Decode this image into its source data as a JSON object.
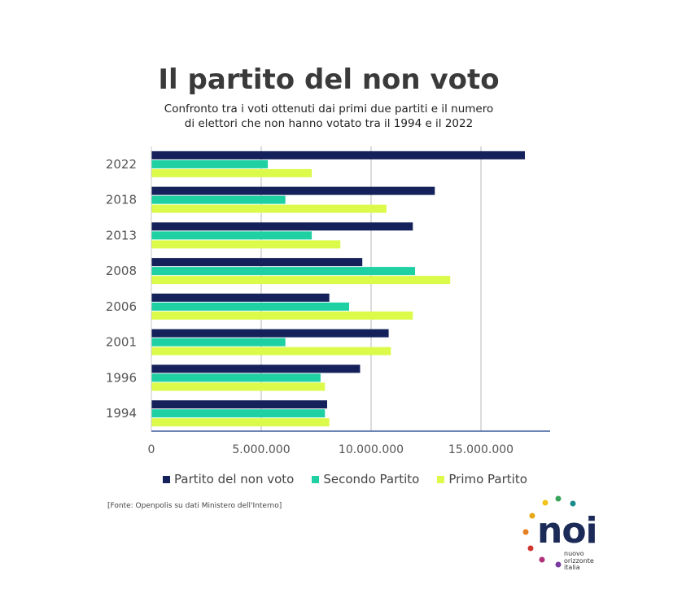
{
  "title": "Il partito del non voto",
  "subtitle_line1": "Confronto tra i voti ottenuti dai primi due partiti e il numero",
  "subtitle_line2": "di elettori che non hanno votato tra il 1994 e il 2022",
  "source": "[Fonte: Openpolis su dati Ministero dell'Interno]",
  "logo": {
    "name": "noi",
    "line1": "nuovo",
    "line2": "orizzonte",
    "line3": "italia"
  },
  "chart_data": {
    "type": "bar",
    "orientation": "horizontal",
    "categories": [
      "2022",
      "2018",
      "2013",
      "2008",
      "2006",
      "2001",
      "1996",
      "1994"
    ],
    "series": [
      {
        "name": "Partito del non voto",
        "color": "#14215a",
        "values": [
          17000000,
          12900000,
          11900000,
          9600000,
          8100000,
          10800000,
          9500000,
          8000000
        ]
      },
      {
        "name": "Secondo Partito",
        "color": "#1fd0a2",
        "values": [
          5300000,
          6100000,
          7300000,
          12000000,
          9000000,
          6100000,
          7700000,
          7900000
        ]
      },
      {
        "name": "Primo Partito",
        "color": "#dcfa4a",
        "values": [
          7300000,
          10700000,
          8600000,
          13600000,
          11900000,
          10900000,
          7900000,
          8100000
        ]
      }
    ],
    "x_ticks": [
      "0",
      "5.000.000",
      "10.000.000",
      "15.000.000"
    ],
    "x_tick_values": [
      0,
      5000000,
      10000000,
      15000000
    ],
    "xlim": [
      0,
      18000000
    ],
    "grid": true,
    "legend_position": "bottom"
  }
}
